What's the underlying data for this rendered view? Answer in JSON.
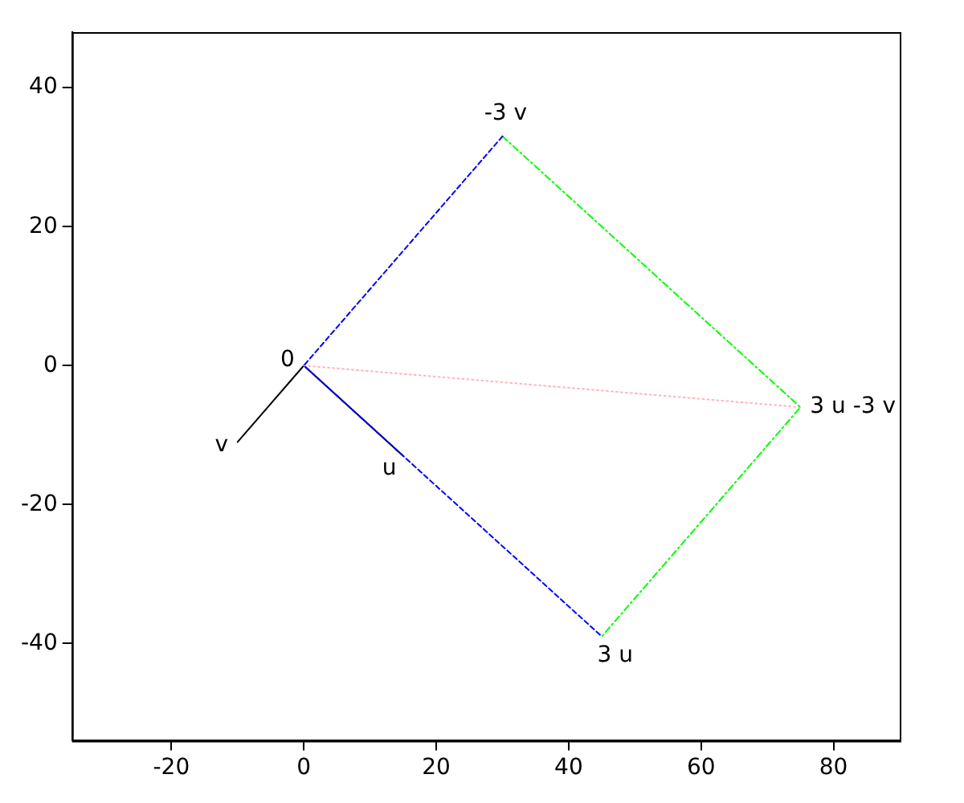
{
  "chart_data": {
    "type": "line",
    "xlim": [
      -35,
      90
    ],
    "ylim": [
      -54,
      48
    ],
    "xticks": [
      -20,
      0,
      20,
      40,
      60,
      80
    ],
    "yticks": [
      -40,
      -20,
      0,
      20,
      40
    ],
    "grid": false,
    "legend": false,
    "series": [
      {
        "color": "#0000ff",
        "line_style": "dashed",
        "x": [
          30,
          0,
          45
        ],
        "values": [
          33,
          0,
          -39
        ]
      },
      {
        "color": "#00ff00",
        "line_style": "dashdot",
        "x": [
          30,
          75,
          45
        ],
        "values": [
          33,
          -6,
          -39
        ]
      },
      {
        "color": "#ffb6c1",
        "line_style": "dotted",
        "x": [
          0,
          75
        ],
        "values": [
          0,
          -6
        ]
      },
      {
        "color": "#000000",
        "line_style": "solid",
        "x": [
          0,
          15
        ],
        "values": [
          0,
          -13
        ]
      },
      {
        "color": "#000000",
        "line_style": "solid",
        "x": [
          0,
          -10
        ],
        "values": [
          0,
          -11
        ]
      }
    ],
    "annotations": [
      {
        "text": "0",
        "x": 0,
        "y": 0
      },
      {
        "text": "u",
        "x": 15,
        "y": -13
      },
      {
        "text": "v",
        "x": -10,
        "y": -11
      },
      {
        "text": "3 u",
        "x": 45,
        "y": -39
      },
      {
        "text": "-3 v",
        "x": 30,
        "y": 33
      },
      {
        "text": "3 u -3 v",
        "x": 75,
        "y": -6
      }
    ]
  }
}
